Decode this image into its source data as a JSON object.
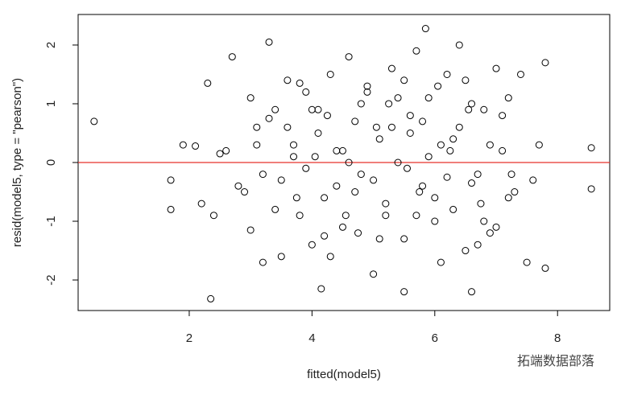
{
  "chart_data": {
    "type": "scatter",
    "xlabel": "fitted(model5)",
    "ylabel": "resid(model5, type = \"pearson\")",
    "annotation": "拓端数据部落",
    "x": [
      0.45,
      8.55,
      8.55,
      5.85,
      2.35,
      3.3,
      1.7,
      1.7,
      1.9,
      7.8,
      6.6,
      5.5,
      4.15,
      2.3,
      2.6,
      2.9,
      3.0,
      3.1,
      3.2,
      3.4,
      3.5,
      3.6,
      3.7,
      3.8,
      3.9,
      4.0,
      4.1,
      4.2,
      4.3,
      4.4,
      4.5,
      4.6,
      4.7,
      4.8,
      4.9,
      5.0,
      5.1,
      5.2,
      5.3,
      5.4,
      5.5,
      5.6,
      5.7,
      5.8,
      5.9,
      6.0,
      6.1,
      6.2,
      6.3,
      6.4,
      6.5,
      6.6,
      6.7,
      6.8,
      6.9,
      7.0,
      7.1,
      7.2,
      7.4,
      7.6,
      7.8,
      2.1,
      2.4,
      2.5,
      2.8,
      3.0,
      3.3,
      3.5,
      3.7,
      3.9,
      4.1,
      4.3,
      4.5,
      4.7,
      4.9,
      5.1,
      5.3,
      5.5,
      5.7,
      5.9,
      6.1,
      6.3,
      6.5,
      6.7,
      6.9,
      7.1,
      7.3,
      7.7,
      2.2,
      2.7,
      3.2,
      3.6,
      4.0,
      4.4,
      4.8,
      5.2,
      5.6,
      6.0,
      6.4,
      6.8,
      7.2,
      7.5,
      3.1,
      3.4,
      3.8,
      4.2,
      4.6,
      5.0,
      5.4,
      5.8,
      6.2,
      6.6,
      7.0,
      4.05,
      4.55,
      5.05,
      5.55,
      6.05,
      6.55,
      3.75,
      4.25,
      4.75,
      5.25,
      5.75,
      6.25,
      6.75,
      7.25
    ],
    "values": [
      0.7,
      0.25,
      -0.45,
      2.28,
      -2.32,
      2.05,
      -0.8,
      -0.3,
      0.3,
      -1.8,
      -2.2,
      -2.2,
      -2.15,
      1.35,
      0.2,
      -0.5,
      1.1,
      0.6,
      -1.7,
      0.9,
      -0.3,
      1.4,
      0.1,
      -0.9,
      1.2,
      -1.4,
      0.5,
      -0.6,
      1.5,
      0.2,
      -1.1,
      1.8,
      0.7,
      -0.2,
      1.3,
      -1.9,
      0.4,
      -0.7,
      1.6,
      0.0,
      -1.3,
      0.8,
      1.9,
      -0.4,
      1.1,
      -1.0,
      0.3,
      1.5,
      -0.8,
      0.6,
      -1.5,
      1.0,
      -0.2,
      0.9,
      -1.2,
      1.6,
      0.2,
      -0.6,
      1.5,
      -0.3,
      1.7,
      0.28,
      -0.9,
      0.15,
      -0.4,
      -1.15,
      0.75,
      -1.6,
      0.3,
      -0.1,
      0.9,
      -1.6,
      0.2,
      -0.5,
      1.2,
      -1.3,
      0.6,
      1.4,
      -0.9,
      0.1,
      -1.7,
      0.4,
      1.4,
      -1.4,
      0.3,
      0.8,
      -0.5,
      0.3,
      -0.7,
      1.8,
      -0.2,
      0.6,
      0.9,
      -0.4,
      1.0,
      -0.9,
      0.5,
      -0.6,
      2.0,
      -1.0,
      1.1,
      -1.7,
      0.3,
      -0.8,
      1.35,
      -1.25,
      0.0,
      -0.3,
      1.1,
      0.7,
      -0.25,
      -0.35,
      -1.1,
      0.1,
      -0.9,
      0.6,
      -0.1,
      1.3,
      0.9,
      -0.6,
      0.8,
      -1.2,
      1.0,
      -0.5,
      0.2,
      -0.7,
      -0.2
    ],
    "color": "#000000",
    "hline": 0,
    "hline_color": "#e8302a",
    "xlim": [
      0.19,
      8.85
    ],
    "ylim": [
      -2.52,
      2.52
    ],
    "xticks": [
      2,
      4,
      6,
      8
    ],
    "yticks": [
      -2,
      -1,
      0,
      1,
      2
    ]
  }
}
